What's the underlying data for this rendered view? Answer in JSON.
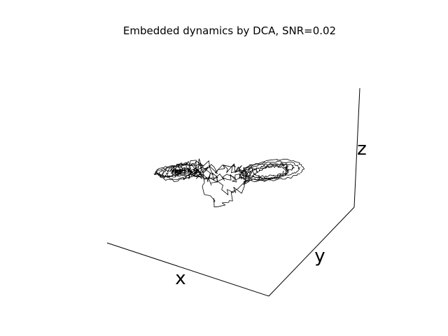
{
  "chart_data": {
    "type": "line",
    "projection": "3d",
    "title": "Embedded dynamics by DCA, SNR=0.02",
    "xlabel": "x",
    "ylabel": "y",
    "zlabel": "z",
    "grid": false,
    "axis_panes": false,
    "line_color": "#000000",
    "series": [
      {
        "attractor_lobes": [
          {
            "lobe": "left",
            "center": [
              -1.0,
              0.0,
              0.0
            ],
            "radii": [
              0.05,
              0.1,
              0.16,
              0.22,
              0.28,
              0.32,
              0.36
            ]
          },
          {
            "lobe": "right",
            "center": [
              1.0,
              0.0,
              0.0
            ],
            "radii": [
              0.22,
              0.28,
              0.32,
              0.36,
              0.42,
              0.48
            ]
          }
        ],
        "noise_level": 0.02
      }
    ]
  }
}
